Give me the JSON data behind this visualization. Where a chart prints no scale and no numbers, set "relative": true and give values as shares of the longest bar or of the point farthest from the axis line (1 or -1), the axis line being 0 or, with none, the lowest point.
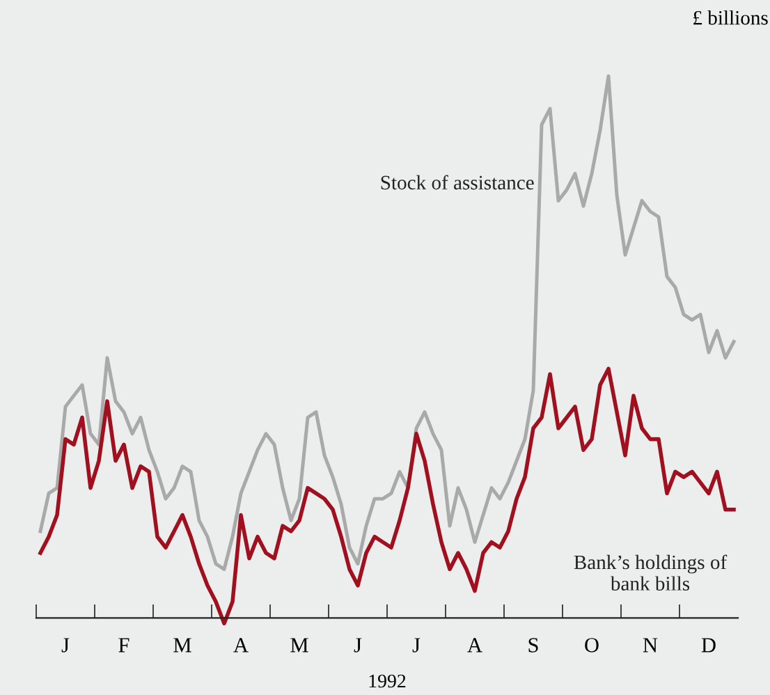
{
  "chart_data": {
    "type": "line",
    "relative": true,
    "ylabel": "£ billions",
    "xlabel": "1992",
    "categories": [
      null,
      null,
      null,
      "J",
      null,
      null,
      null,
      null,
      null,
      null,
      "F",
      null,
      null,
      null,
      null,
      null,
      null,
      "M",
      null,
      null,
      null,
      null,
      null,
      null,
      "A",
      null,
      null,
      null,
      null,
      null,
      null,
      "M",
      null,
      null,
      null,
      null,
      null,
      null,
      "J",
      null,
      null,
      null,
      null,
      null,
      null,
      "J",
      null,
      null,
      null,
      null,
      null,
      null,
      "A",
      null,
      null,
      null,
      null,
      null,
      null,
      "S",
      null,
      null,
      null,
      null,
      null,
      null,
      "O",
      null,
      null,
      null,
      null,
      null,
      null,
      "N",
      null,
      null,
      null,
      null,
      null,
      null,
      "D",
      null,
      null,
      null
    ],
    "legend": false,
    "grid": false,
    "marker": "none",
    "line_style": "solid",
    "series": [
      {
        "name": "Stock of assistance",
        "color": "#a9a9a9",
        "values": [
          0.16,
          0.23,
          0.24,
          0.39,
          0.41,
          0.43,
          0.34,
          0.32,
          0.48,
          0.4,
          0.38,
          0.34,
          0.37,
          0.31,
          0.27,
          0.22,
          0.24,
          0.28,
          0.27,
          0.18,
          0.15,
          0.1,
          0.09,
          0.15,
          0.23,
          0.27,
          0.31,
          0.34,
          0.32,
          0.24,
          0.18,
          0.22,
          0.37,
          0.38,
          0.3,
          0.26,
          0.21,
          0.13,
          0.1,
          0.17,
          0.22,
          0.22,
          0.23,
          0.27,
          0.24,
          0.35,
          0.38,
          0.34,
          0.31,
          0.17,
          0.24,
          0.2,
          0.14,
          0.19,
          0.24,
          0.22,
          0.25,
          0.29,
          0.33,
          0.42,
          0.91,
          0.94,
          0.77,
          0.79,
          0.82,
          0.76,
          0.82,
          0.9,
          1.0,
          0.78,
          0.67,
          0.72,
          0.77,
          0.75,
          0.74,
          0.63,
          0.61,
          0.56,
          0.55,
          0.56,
          0.49,
          0.53,
          0.48,
          0.51
        ]
      },
      {
        "name": "Bank’s holdings of\nbank bills",
        "color": "#a0101e",
        "values": [
          0.12,
          0.15,
          0.19,
          0.33,
          0.32,
          0.37,
          0.24,
          0.29,
          0.4,
          0.29,
          0.32,
          0.24,
          0.28,
          0.27,
          0.15,
          0.13,
          0.16,
          0.19,
          0.15,
          0.1,
          0.06,
          0.03,
          -0.01,
          0.03,
          0.19,
          0.11,
          0.15,
          0.12,
          0.11,
          0.17,
          0.16,
          0.18,
          0.24,
          0.23,
          0.22,
          0.2,
          0.15,
          0.09,
          0.06,
          0.12,
          0.15,
          0.14,
          0.13,
          0.18,
          0.24,
          0.34,
          0.29,
          0.21,
          0.14,
          0.09,
          0.12,
          0.09,
          0.05,
          0.12,
          0.14,
          0.13,
          0.16,
          0.22,
          0.26,
          0.35,
          0.37,
          0.45,
          0.35,
          0.37,
          0.39,
          0.31,
          0.33,
          0.43,
          0.46,
          0.38,
          0.3,
          0.41,
          0.35,
          0.33,
          0.33,
          0.23,
          0.27,
          0.26,
          0.27,
          0.25,
          0.23,
          0.27,
          0.2,
          0.2
        ]
      }
    ]
  }
}
